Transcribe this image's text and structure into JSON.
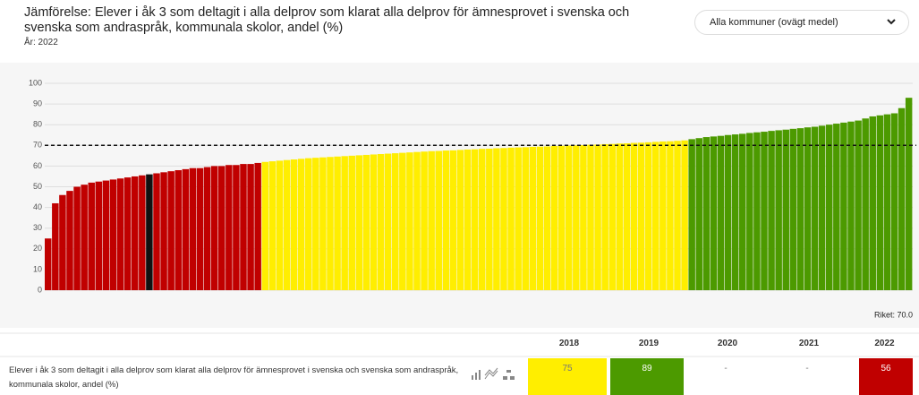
{
  "chart_data": {
    "type": "bar",
    "title": "Jämförelse: Elever i åk 3 som deltagit i alla delprov som klarat alla delprov för ämnesprovet i svenska och svenska som andraspråk, kommunala skolor, andel (%)",
    "subtitle": "År: 2022",
    "dropdown": "Alla kommuner (ovägt medel)",
    "ylim": [
      0,
      100
    ],
    "yticks": [
      0,
      10,
      20,
      30,
      40,
      50,
      60,
      70,
      80,
      90,
      100
    ],
    "grid": true,
    "reference": {
      "value": 70,
      "label": "Riket: 70.0"
    },
    "groups": [
      {
        "color": "#c00000",
        "values": [
          25,
          42,
          46,
          48,
          50,
          51,
          52,
          52.5,
          53,
          53.5,
          54,
          54.5,
          55,
          55.5
        ]
      },
      {
        "color": "#111111",
        "values": [
          56
        ]
      },
      {
        "color": "#c00000",
        "values": [
          56.5,
          57,
          57.5,
          58,
          58.5,
          59,
          59,
          59.5,
          60,
          60,
          60.5,
          60.5,
          61,
          61,
          61.5
        ]
      },
      {
        "color": "#ffee00",
        "values": [
          62,
          62.3,
          62.6,
          62.9,
          63.2,
          63.5,
          63.8,
          64,
          64.2,
          64.4,
          64.6,
          64.8,
          65,
          65.2,
          65.4,
          65.6,
          65.8,
          66,
          66.2,
          66.4,
          66.6,
          66.8,
          67,
          67.2,
          67.3,
          67.5,
          67.6,
          67.8,
          68,
          68.1,
          68.3,
          68.4,
          68.6,
          68.7,
          68.9,
          69,
          69.1,
          69.3,
          69.4,
          69.5,
          69.7,
          69.8,
          69.9,
          70,
          70.1,
          70.3,
          70.4,
          70.6,
          70.7,
          70.9,
          71,
          71.2,
          71.3,
          71.5,
          71.7,
          71.9,
          72,
          72.2,
          72.4
        ]
      },
      {
        "color": "#4c9a00",
        "values": [
          73,
          73.5,
          74,
          74.3,
          74.6,
          75,
          75.3,
          75.6,
          76,
          76.3,
          76.6,
          77,
          77.3,
          77.6,
          78,
          78.3,
          78.7,
          79,
          79.5,
          80,
          80.5,
          81,
          81.5,
          82,
          83,
          84,
          84.5,
          85,
          85.5,
          88,
          93
        ]
      }
    ]
  },
  "table": {
    "header": [
      "2018",
      "2019",
      "2020",
      "2021",
      "2022"
    ],
    "row_label": "Elever i åk 3 som deltagit i alla delprov som klarat alla delprov för ämnesprovet i svenska och svenska som andraspråk, kommunala skolor, andel (%)",
    "cells": [
      75,
      89,
      "-",
      "-",
      56
    ],
    "cell_colors": [
      "#ffee00",
      "#4c9a00",
      null,
      null,
      "#c00000"
    ]
  }
}
